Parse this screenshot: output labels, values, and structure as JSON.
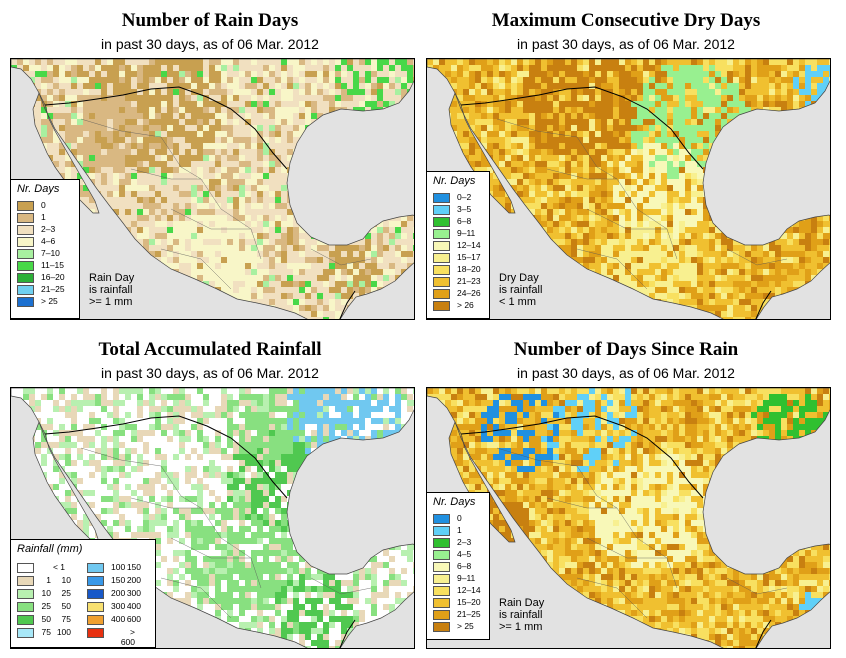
{
  "panels": [
    {
      "title": "Number of Rain Days",
      "subtitle": "in past 30 days, as of  06 Mar. 2012",
      "legend_title": "Nr. Days",
      "legend": [
        {
          "label": "0",
          "color": "#c8a050"
        },
        {
          "label": "1",
          "color": "#d9b882"
        },
        {
          "label": "2–3",
          "color": "#f1e0c0"
        },
        {
          "label": "4–6",
          "color": "#f8f6c8"
        },
        {
          "label": "7–10",
          "color": "#a8f0a0"
        },
        {
          "label": "11–15",
          "color": "#48d848"
        },
        {
          "label": "16–20",
          "color": "#2cb038"
        },
        {
          "label": "21–25",
          "color": "#70d0f0"
        },
        {
          "label": "> 25",
          "color": "#1c70d0"
        }
      ],
      "note": "Rain Day\nis rainfall\n>= 1 mm"
    },
    {
      "title": "Maximum Consecutive Dry Days",
      "subtitle": "in past 30 days, as of  06 Mar. 2012",
      "legend_title": "Nr. Days",
      "legend": [
        {
          "label": "0–2",
          "color": "#2090e0"
        },
        {
          "label": "3–5",
          "color": "#60d0f8"
        },
        {
          "label": "6–8",
          "color": "#30c030"
        },
        {
          "label": "9–11",
          "color": "#98f090"
        },
        {
          "label": "12–14",
          "color": "#f8f8b8"
        },
        {
          "label": "15–17",
          "color": "#f8f090"
        },
        {
          "label": "18–20",
          "color": "#f8e060"
        },
        {
          "label": "21–23",
          "color": "#f0c030"
        },
        {
          "label": "24–26",
          "color": "#e0a018"
        },
        {
          "label": "> 26",
          "color": "#c88010"
        }
      ],
      "note": "Dry Day\nis rainfall\n< 1 mm"
    },
    {
      "title": "Total Accumulated Rainfall",
      "subtitle": "in past 30 days, as of  06 Mar. 2012",
      "legend_title": "Rainfall (mm)",
      "legend_left": [
        {
          "lo": "",
          "hi": "< 1",
          "color": "#ffffff"
        },
        {
          "lo": "1",
          "hi": "10",
          "color": "#e8d8b8"
        },
        {
          "lo": "10",
          "hi": "25",
          "color": "#b8f0b0"
        },
        {
          "lo": "25",
          "hi": "50",
          "color": "#88e080"
        },
        {
          "lo": "50",
          "hi": "75",
          "color": "#50c850"
        },
        {
          "lo": "75",
          "hi": "100",
          "color": "#a8e8f8"
        }
      ],
      "legend_right": [
        {
          "lo": "100",
          "hi": "150",
          "color": "#70c8f0"
        },
        {
          "lo": "150",
          "hi": "200",
          "color": "#3898e8"
        },
        {
          "lo": "200",
          "hi": "300",
          "color": "#1858c8"
        },
        {
          "lo": "300",
          "hi": "400",
          "color": "#f8e070"
        },
        {
          "lo": "400",
          "hi": "600",
          "color": "#f0a030"
        },
        {
          "lo": "",
          "hi": "> 600",
          "color": "#e83010"
        }
      ]
    },
    {
      "title": "Number of Days Since Rain",
      "subtitle": "in past 30 days, as of  06 Mar. 2012",
      "legend_title": "Nr. Days",
      "legend": [
        {
          "label": "0",
          "color": "#2090e0"
        },
        {
          "label": "1",
          "color": "#60d0f8"
        },
        {
          "label": "2–3",
          "color": "#30c030"
        },
        {
          "label": "4–5",
          "color": "#98f090"
        },
        {
          "label": "6–8",
          "color": "#f8f8b8"
        },
        {
          "label": "9–11",
          "color": "#f8f090"
        },
        {
          "label": "12–14",
          "color": "#f8e060"
        },
        {
          "label": "15–20",
          "color": "#f0c030"
        },
        {
          "label": "21–25",
          "color": "#e0a018"
        },
        {
          "label": "> 25",
          "color": "#c88010"
        }
      ],
      "note": "Rain Day\nis rainfall\n>= 1 mm"
    }
  ]
}
